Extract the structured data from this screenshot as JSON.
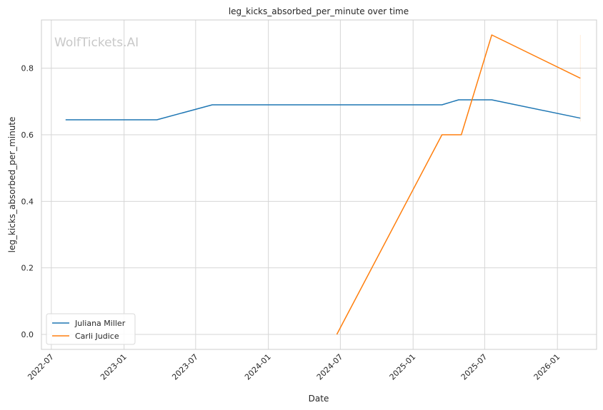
{
  "chart_data": {
    "type": "line",
    "title": "leg_kicks_absorbed_per_minute over time",
    "xlabel": "Date",
    "ylabel": "leg_kicks_absorbed_per_minute",
    "watermark": "WolfTickets.AI",
    "x_ticks": [
      "2022-07",
      "2023-01",
      "2023-07",
      "2024-01",
      "2024-07",
      "2025-01",
      "2025-07",
      "2026-01"
    ],
    "y_ticks": [
      "0.0",
      "0.2",
      "0.4",
      "0.6",
      "0.8"
    ],
    "xlim": [
      "2022-06-06",
      "2026-04-10"
    ],
    "ylim": [
      -0.045,
      0.945
    ],
    "grid": true,
    "legend_position": "lower-left",
    "series": [
      {
        "name": "Juliana Miller",
        "color": "#1f77b4",
        "points": [
          {
            "x": "2022-08-06",
            "y": 0.645
          },
          {
            "x": "2023-03-25",
            "y": 0.645
          },
          {
            "x": "2023-08-12",
            "y": 0.69
          },
          {
            "x": "2025-03-15",
            "y": 0.69
          },
          {
            "x": "2025-04-26",
            "y": 0.705
          },
          {
            "x": "2025-07-19",
            "y": 0.705
          },
          {
            "x": "2026-02-28",
            "y": 0.65
          }
        ]
      },
      {
        "name": "Carli Judice",
        "color": "#ff7f0e",
        "points": [
          {
            "x": "2024-06-22",
            "y": 0.0
          },
          {
            "x": "2025-03-15",
            "y": 0.6
          },
          {
            "x": "2025-05-03",
            "y": 0.6
          },
          {
            "x": "2025-07-19",
            "y": 0.9
          },
          {
            "x": "2026-02-28",
            "y": 0.77
          }
        ]
      }
    ]
  }
}
